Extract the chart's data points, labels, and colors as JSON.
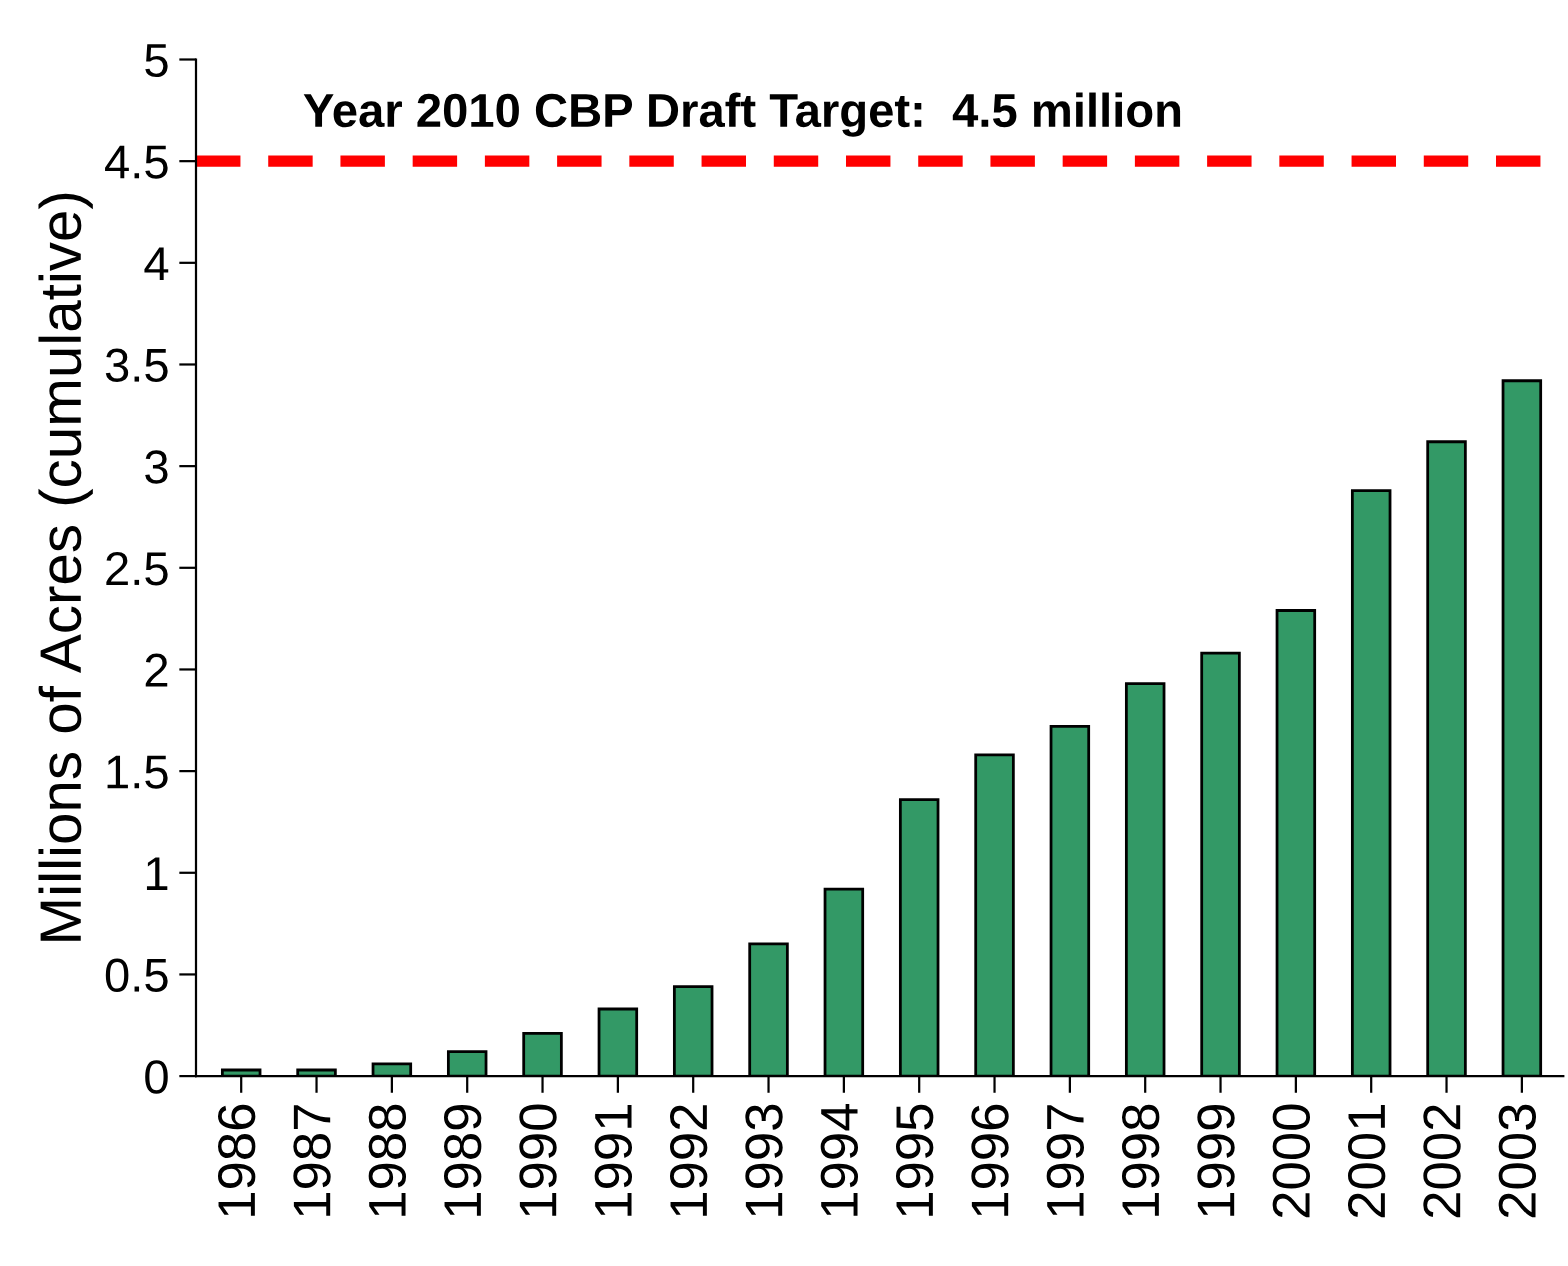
{
  "chart_data": {
    "type": "bar",
    "ylabel": "Millions of Acres (cumulative)",
    "categories": [
      "1986",
      "1987",
      "1988",
      "1989",
      "1990",
      "1991",
      "1992",
      "1993",
      "1994",
      "1995",
      "1996",
      "1997",
      "1998",
      "1999",
      "2000",
      "2001",
      "2002",
      "2003"
    ],
    "values": [
      0.03,
      0.03,
      0.06,
      0.12,
      0.21,
      0.33,
      0.44,
      0.65,
      0.92,
      1.36,
      1.58,
      1.72,
      1.93,
      2.08,
      2.29,
      2.88,
      3.12,
      3.42
    ],
    "color": "#339966",
    "ylim": [
      0,
      5
    ],
    "yticks": [
      0,
      0.5,
      1,
      1.5,
      2,
      2.5,
      3,
      3.5,
      4,
      4.5,
      5
    ],
    "ref_lines": [
      {
        "axis": "y",
        "value": 4.5,
        "label": "Year 2010 CBP Draft Target:  4.5 million",
        "color": "#ff0000",
        "line_style": "dashed"
      }
    ],
    "grid": false,
    "legend": false
  }
}
